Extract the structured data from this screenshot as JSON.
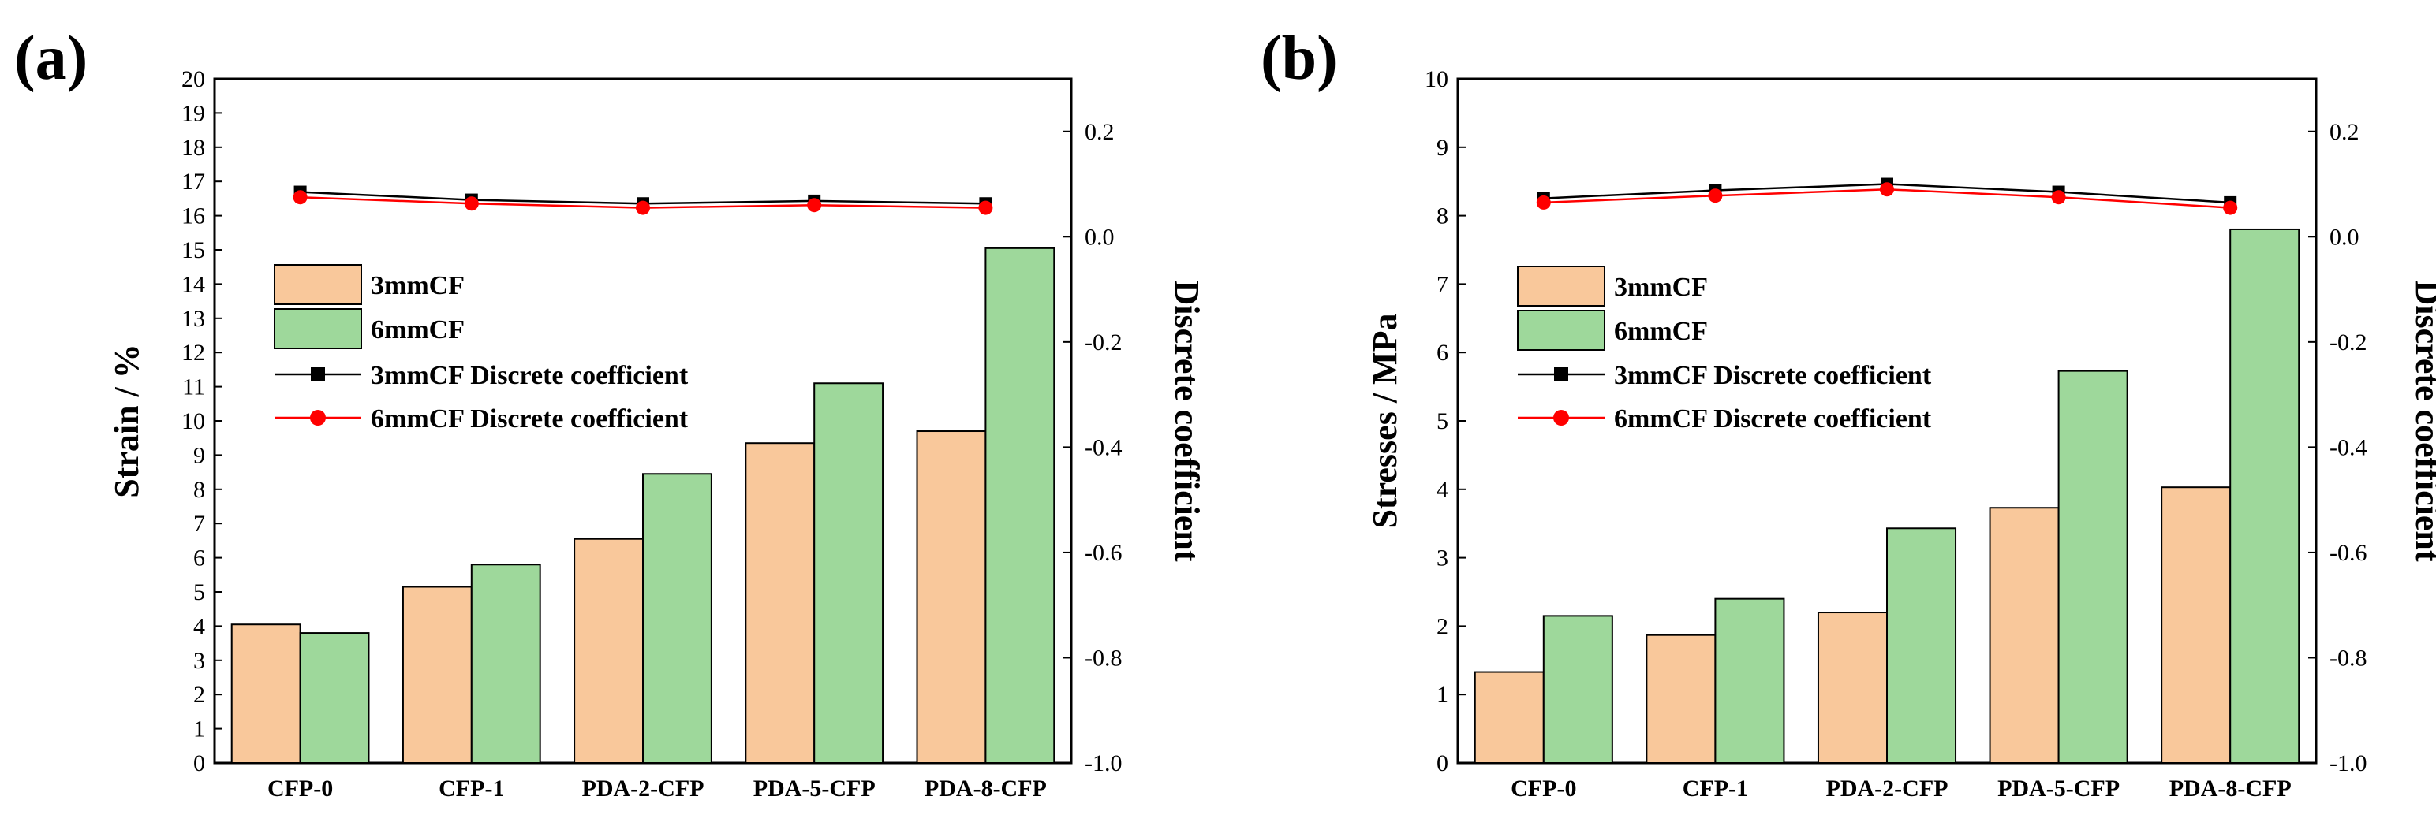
{
  "colors": {
    "bar_3mm": "#f9c89b",
    "bar_6mm": "#9ed89b",
    "line_3mm": "#000000",
    "line_6mm": "#ff0000",
    "axis": "#000000"
  },
  "chart_data": [
    {
      "type": "bar",
      "panel_label": "(a)",
      "categories": [
        "CFP-0",
        "CFP-1",
        "PDA-2-CFP",
        "PDA-5-CFP",
        "PDA-8-CFP"
      ],
      "ylabel": "Strain / %",
      "ylim": [
        0,
        20
      ],
      "yticks": [
        "0",
        "1",
        "2",
        "3",
        "4",
        "5",
        "6",
        "7",
        "8",
        "9",
        "10",
        "11",
        "12",
        "13",
        "14",
        "15",
        "16",
        "17",
        "18",
        "19",
        "20"
      ],
      "y2label": "Discrete coefficient",
      "y2lim": [
        -1.0,
        0.3
      ],
      "y2ticks": [
        "-1.0",
        "-0.8",
        "-0.6",
        "-0.4",
        "-0.2",
        "0.0",
        "0.2"
      ],
      "series": [
        {
          "name": "3mmCF",
          "kind": "bar",
          "values": [
            4.05,
            5.15,
            6.55,
            9.35,
            9.7
          ]
        },
        {
          "name": "6mmCF",
          "kind": "bar",
          "values": [
            3.8,
            5.8,
            8.45,
            11.1,
            15.05
          ]
        },
        {
          "name": "3mmCF Discrete coefficient",
          "kind": "line",
          "marker": "square",
          "axis": "right",
          "values": [
            0.085,
            0.07,
            0.063,
            0.068,
            0.063
          ]
        },
        {
          "name": "6mmCF Discrete coefficient",
          "kind": "line",
          "marker": "circle",
          "axis": "right",
          "values": [
            0.075,
            0.063,
            0.055,
            0.06,
            0.055
          ]
        }
      ],
      "legend_position": "left-middle"
    },
    {
      "type": "bar",
      "panel_label": "(b)",
      "categories": [
        "CFP-0",
        "CFP-1",
        "PDA-2-CFP",
        "PDA-5-CFP",
        "PDA-8-CFP"
      ],
      "ylabel": "Stresses / MPa",
      "ylim": [
        0,
        10
      ],
      "yticks": [
        "0",
        "1",
        "2",
        "3",
        "4",
        "5",
        "6",
        "7",
        "8",
        "9",
        "10"
      ],
      "y2label": "Discrete coefficient",
      "y2lim": [
        -1.0,
        0.3
      ],
      "y2ticks": [
        "-1.0",
        "-0.8",
        "-0.6",
        "-0.4",
        "-0.2",
        "0.0",
        "0.2"
      ],
      "series": [
        {
          "name": "3mmCF",
          "kind": "bar",
          "values": [
            1.33,
            1.87,
            2.2,
            3.73,
            4.03
          ]
        },
        {
          "name": "6mmCF",
          "kind": "bar",
          "values": [
            2.15,
            2.4,
            3.43,
            5.73,
            7.8
          ]
        },
        {
          "name": "3mmCF Discrete coefficient",
          "kind": "line",
          "marker": "square",
          "axis": "right",
          "values": [
            0.073,
            0.088,
            0.1,
            0.085,
            0.065
          ]
        },
        {
          "name": "6mmCF Discrete coefficient",
          "kind": "line",
          "marker": "circle",
          "axis": "right",
          "values": [
            0.065,
            0.078,
            0.09,
            0.075,
            0.055
          ]
        }
      ],
      "legend_position": "left-middle"
    }
  ]
}
